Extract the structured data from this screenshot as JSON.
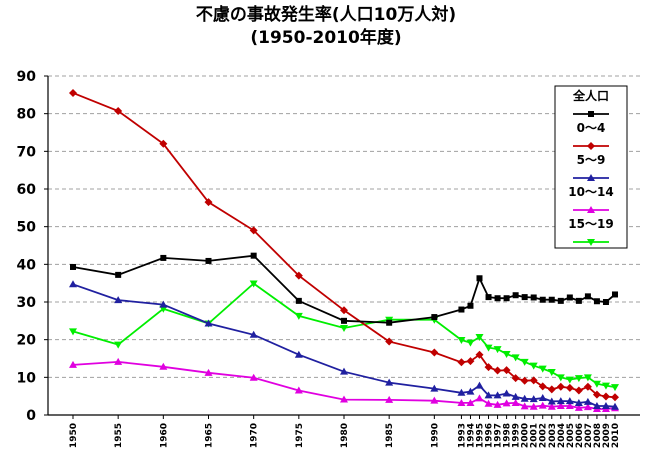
{
  "title": {
    "line1": "不慮の事故発生率(人口10万人対)",
    "line2": "(1950-2010年度)"
  },
  "chart_data": {
    "type": "line",
    "x": [
      "1950",
      "1955",
      "1960",
      "1965",
      "1970",
      "1975",
      "1980",
      "1985",
      "1990",
      "1993",
      "1994",
      "1995",
      "1996",
      "1997",
      "1998",
      "1999",
      "2000",
      "2001",
      "2002",
      "2003",
      "2004",
      "2005",
      "2006",
      "2007",
      "2008",
      "2009",
      "2010"
    ],
    "ylim": [
      0,
      90
    ],
    "yticks": [
      0,
      10,
      20,
      30,
      40,
      50,
      60,
      70,
      80,
      90
    ],
    "grid": true,
    "legend_position": "top-right",
    "series": [
      {
        "name": "全人口",
        "color": "#000000",
        "marker": "square",
        "values": [
          39.3,
          37.2,
          41.7,
          40.9,
          42.3,
          30.3,
          25.0,
          24.5,
          26.0,
          28.0,
          29.0,
          36.3,
          31.3,
          31.0,
          31.0,
          31.8,
          31.3,
          31.2,
          30.6,
          30.6,
          30.3,
          31.2,
          30.3,
          31.5,
          30.2,
          30.0,
          32.0
        ]
      },
      {
        "name": "0～4",
        "color": "#c00000",
        "marker": "diamond",
        "values": [
          85.5,
          80.7,
          72.0,
          56.5,
          49.0,
          37.0,
          27.8,
          19.5,
          16.6,
          14.0,
          14.3,
          16.0,
          12.7,
          11.8,
          11.9,
          9.8,
          9.1,
          9.2,
          7.6,
          6.8,
          7.5,
          7.2,
          6.5,
          7.5,
          5.4,
          4.9,
          4.7
        ]
      },
      {
        "name": "5～9",
        "color": "#2020a0",
        "marker": "triangle",
        "values": [
          34.7,
          30.5,
          29.3,
          24.3,
          21.3,
          16.0,
          11.5,
          8.6,
          7.0,
          5.9,
          6.2,
          7.8,
          5.2,
          5.2,
          5.7,
          4.8,
          4.3,
          4.2,
          4.5,
          3.6,
          3.7,
          3.7,
          3.2,
          3.5,
          2.4,
          2.4,
          2.2
        ]
      },
      {
        "name": "10～14",
        "color": "#e000e0",
        "marker": "triangle",
        "values": [
          13.3,
          14.1,
          12.8,
          11.2,
          9.9,
          6.5,
          4.1,
          4.0,
          3.8,
          3.2,
          3.2,
          4.4,
          3.0,
          2.7,
          3.1,
          3.2,
          2.3,
          2.2,
          2.5,
          2.2,
          2.4,
          2.4,
          1.9,
          2.1,
          1.6,
          1.6,
          1.8
        ]
      },
      {
        "name": "15～19",
        "color": "#00ee00",
        "marker": "triangle-down",
        "values": [
          22.2,
          18.7,
          28.2,
          24.3,
          34.9,
          26.3,
          23.1,
          25.3,
          25.3,
          19.9,
          19.2,
          20.7,
          17.9,
          17.5,
          16.2,
          15.3,
          14.1,
          13.1,
          12.3,
          11.4,
          10.0,
          9.4,
          9.8,
          10.0,
          8.3,
          7.8,
          7.4
        ]
      }
    ]
  }
}
